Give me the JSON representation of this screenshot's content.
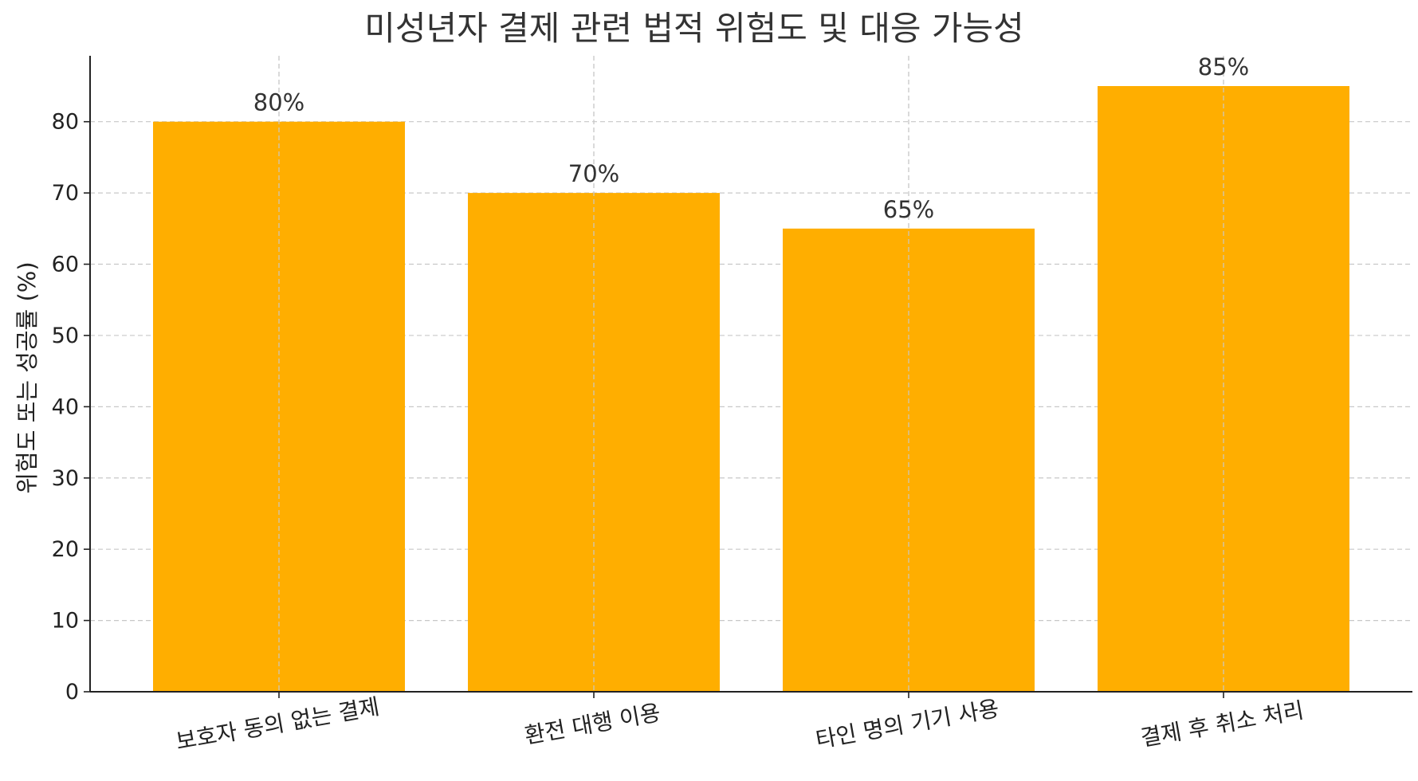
{
  "chart_data": {
    "type": "bar",
    "title": "미성년자 결제 관련 법적 위험도 및 대응 가능성",
    "xlabel": "",
    "ylabel": "위험도 또는 성공률 (%)",
    "categories": [
      "보호자 동의 없는 결제",
      "환전 대행 이용",
      "타인 명의 기기 사용",
      "결제 후 취소 처리"
    ],
    "values": [
      80,
      70,
      65,
      85
    ],
    "data_labels": [
      "80%",
      "70%",
      "65%",
      "85%"
    ],
    "ylim": [
      0,
      89.25
    ],
    "yticks": [
      0,
      10,
      20,
      30,
      40,
      50,
      60,
      70,
      80
    ],
    "grid": true,
    "bar_color": "#FFAE00",
    "x_tick_rotation_deg": -10
  }
}
